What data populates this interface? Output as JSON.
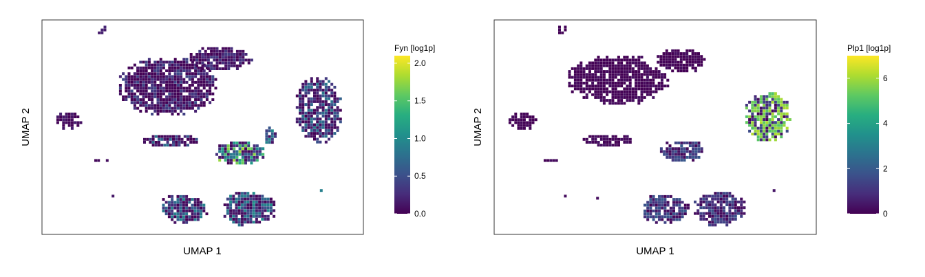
{
  "chart_data": [
    {
      "type": "scatter",
      "xlabel": "UMAP 1",
      "ylabel": "UMAP 2",
      "colorbar": {
        "title": "Fyn [log1p]",
        "ticks": [
          "0.0",
          "0.5",
          "1.0",
          "1.5",
          "2.0"
        ],
        "tick_values": [
          0,
          0.5,
          1.0,
          1.5,
          2.0
        ],
        "range": [
          0,
          2.1
        ],
        "colormap": "viridis"
      },
      "clusters": [
        {
          "x": 0.185,
          "y": 0.955,
          "rx": 0.016,
          "ry": 0.025,
          "value": 0.2,
          "spread": 0.05
        },
        {
          "x": 0.395,
          "y": 0.69,
          "rx": 0.16,
          "ry": 0.14,
          "value": 0.2,
          "spread": 0.3
        },
        {
          "x": 0.555,
          "y": 0.82,
          "rx": 0.1,
          "ry": 0.06,
          "value": 0.2,
          "spread": 0.2
        },
        {
          "x": 0.085,
          "y": 0.53,
          "rx": 0.045,
          "ry": 0.045,
          "value": 0.1,
          "spread": 0.1
        },
        {
          "x": 0.86,
          "y": 0.58,
          "rx": 0.075,
          "ry": 0.16,
          "value": 0.45,
          "spread": 0.45
        },
        {
          "x": 0.4,
          "y": 0.44,
          "rx": 0.09,
          "ry": 0.03,
          "value": 0.3,
          "spread": 0.5
        },
        {
          "x": 0.615,
          "y": 0.38,
          "rx": 0.08,
          "ry": 0.06,
          "value": 1.0,
          "spread": 0.9
        },
        {
          "x": 0.71,
          "y": 0.46,
          "rx": 0.02,
          "ry": 0.05,
          "value": 0.6,
          "spread": 0.4
        },
        {
          "x": 0.18,
          "y": 0.35,
          "rx": 0.04,
          "ry": 0.008,
          "value": 0.1,
          "spread": 0.1
        },
        {
          "x": 0.44,
          "y": 0.12,
          "rx": 0.08,
          "ry": 0.07,
          "value": 0.5,
          "spread": 0.5
        },
        {
          "x": 0.645,
          "y": 0.12,
          "rx": 0.085,
          "ry": 0.085,
          "value": 0.55,
          "spread": 0.5
        },
        {
          "x": 0.22,
          "y": 0.18,
          "rx": 0.008,
          "ry": 0.012,
          "value": 0.1,
          "spread": 0.05
        },
        {
          "x": 0.32,
          "y": 0.17,
          "rx": 0.008,
          "ry": 0.012,
          "value": 0.1,
          "spread": 0.05
        },
        {
          "x": 0.87,
          "y": 0.21,
          "rx": 0.01,
          "ry": 0.008,
          "value": 1.0,
          "spread": 0.1
        }
      ]
    },
    {
      "type": "scatter",
      "xlabel": "UMAP 1",
      "ylabel": "UMAP 2",
      "colorbar": {
        "title": "Plp1 [log1p]",
        "ticks": [
          "0",
          "2",
          "4",
          "6"
        ],
        "tick_values": [
          0,
          2,
          4,
          6
        ],
        "range": [
          0,
          7
        ],
        "colormap": "viridis"
      },
      "clusters": [
        {
          "x": 0.21,
          "y": 0.955,
          "rx": 0.016,
          "ry": 0.025,
          "value": 0.1,
          "spread": 0.05
        },
        {
          "x": 0.385,
          "y": 0.72,
          "rx": 0.16,
          "ry": 0.12,
          "value": 0.1,
          "spread": 0.2
        },
        {
          "x": 0.58,
          "y": 0.81,
          "rx": 0.08,
          "ry": 0.06,
          "value": 0.1,
          "spread": 0.2
        },
        {
          "x": 0.085,
          "y": 0.53,
          "rx": 0.045,
          "ry": 0.045,
          "value": 0.1,
          "spread": 0.1
        },
        {
          "x": 0.85,
          "y": 0.55,
          "rx": 0.075,
          "ry": 0.12,
          "value": 5.6,
          "spread": 0.6
        },
        {
          "x": 0.35,
          "y": 0.44,
          "rx": 0.08,
          "ry": 0.03,
          "value": 0.2,
          "spread": 0.2
        },
        {
          "x": 0.585,
          "y": 0.39,
          "rx": 0.075,
          "ry": 0.05,
          "value": 1.5,
          "spread": 0.5
        },
        {
          "x": 0.18,
          "y": 0.35,
          "rx": 0.04,
          "ry": 0.008,
          "value": 0.2,
          "spread": 0.1
        },
        {
          "x": 0.53,
          "y": 0.12,
          "rx": 0.08,
          "ry": 0.07,
          "value": 1.4,
          "spread": 0.6
        },
        {
          "x": 0.7,
          "y": 0.12,
          "rx": 0.085,
          "ry": 0.085,
          "value": 1.2,
          "spread": 0.6
        },
        {
          "x": 0.22,
          "y": 0.18,
          "rx": 0.008,
          "ry": 0.012,
          "value": 0.2,
          "spread": 0.05
        },
        {
          "x": 0.32,
          "y": 0.17,
          "rx": 0.008,
          "ry": 0.012,
          "value": 0.2,
          "spread": 0.05
        },
        {
          "x": 0.87,
          "y": 0.21,
          "rx": 0.01,
          "ry": 0.008,
          "value": 1.6,
          "spread": 0.1
        }
      ]
    }
  ]
}
